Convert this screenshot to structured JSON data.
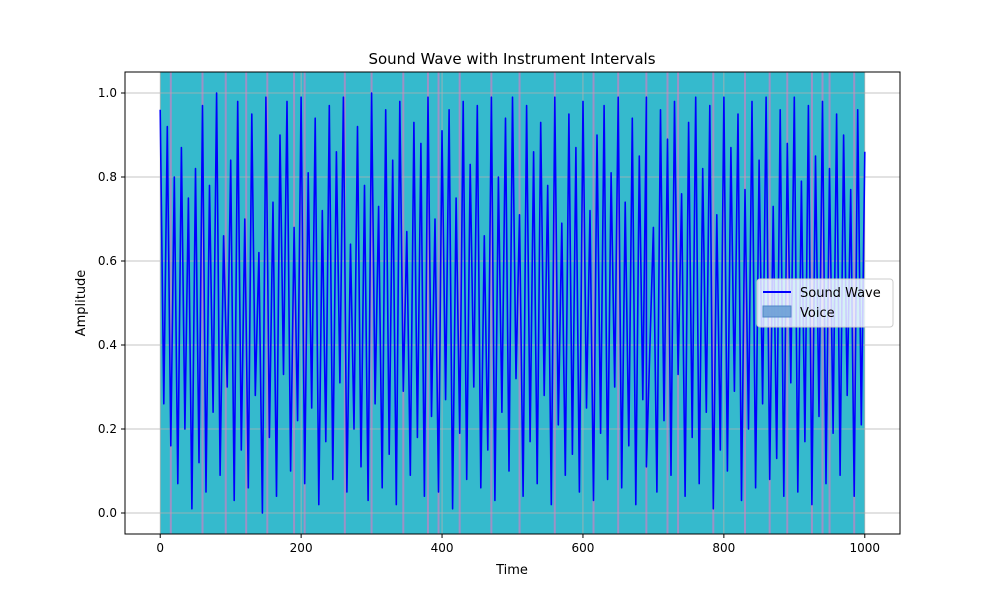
{
  "chart_data": {
    "type": "line",
    "title": "Sound Wave with Instrument Intervals",
    "xlabel": "Time",
    "ylabel": "Amplitude",
    "xlim": [
      -50,
      1050
    ],
    "ylim": [
      -0.05,
      1.05
    ],
    "x_ticks": [
      0,
      200,
      400,
      600,
      800,
      1000
    ],
    "y_ticks": [
      0.0,
      0.2,
      0.4,
      0.6,
      0.8,
      1.0
    ],
    "x_tick_labels": [
      "0",
      "200",
      "400",
      "600",
      "800",
      "1000"
    ],
    "y_tick_labels": [
      "0.0",
      "0.2",
      "0.4",
      "0.6",
      "0.8",
      "1.0"
    ],
    "grid": true,
    "legend_position": "center-right",
    "series": [
      {
        "name": "Sound Wave",
        "color": "#0000ff",
        "x_range": [
          0,
          1000
        ],
        "points": [
          [
            0,
            0.96
          ],
          [
            5,
            0.26
          ],
          [
            10,
            0.92
          ],
          [
            15,
            0.16
          ],
          [
            20,
            0.8
          ],
          [
            25,
            0.07
          ],
          [
            30,
            0.87
          ],
          [
            35,
            0.2
          ],
          [
            40,
            0.75
          ],
          [
            45,
            0.01
          ],
          [
            50,
            0.82
          ],
          [
            55,
            0.12
          ],
          [
            60,
            0.97
          ],
          [
            65,
            0.05
          ],
          [
            70,
            0.78
          ],
          [
            75,
            0.24
          ],
          [
            80,
            1.0
          ],
          [
            85,
            0.09
          ],
          [
            90,
            0.66
          ],
          [
            95,
            0.3
          ],
          [
            100,
            0.84
          ],
          [
            105,
            0.03
          ],
          [
            110,
            0.98
          ],
          [
            115,
            0.15
          ],
          [
            120,
            0.7
          ],
          [
            125,
            0.06
          ],
          [
            130,
            0.95
          ],
          [
            135,
            0.28
          ],
          [
            140,
            0.62
          ],
          [
            145,
            0.0
          ],
          [
            150,
            0.99
          ],
          [
            155,
            0.18
          ],
          [
            160,
            0.74
          ],
          [
            165,
            0.04
          ],
          [
            170,
            0.9
          ],
          [
            175,
            0.33
          ],
          [
            180,
            0.98
          ],
          [
            185,
            0.1
          ],
          [
            190,
            0.68
          ],
          [
            195,
            0.22
          ],
          [
            200,
            0.99
          ],
          [
            205,
            0.07
          ],
          [
            210,
            0.81
          ],
          [
            215,
            0.25
          ],
          [
            220,
            0.94
          ],
          [
            225,
            0.02
          ],
          [
            230,
            0.72
          ],
          [
            235,
            0.17
          ],
          [
            240,
            0.97
          ],
          [
            245,
            0.08
          ],
          [
            250,
            0.86
          ],
          [
            255,
            0.31
          ],
          [
            260,
            0.99
          ],
          [
            265,
            0.05
          ],
          [
            270,
            0.64
          ],
          [
            275,
            0.2
          ],
          [
            280,
            0.92
          ],
          [
            285,
            0.11
          ],
          [
            290,
            0.78
          ],
          [
            295,
            0.03
          ],
          [
            300,
            1.0
          ],
          [
            305,
            0.26
          ],
          [
            310,
            0.73
          ],
          [
            315,
            0.06
          ],
          [
            320,
            0.96
          ],
          [
            325,
            0.14
          ],
          [
            330,
            0.84
          ],
          [
            335,
            0.02
          ],
          [
            340,
            0.98
          ],
          [
            345,
            0.29
          ],
          [
            350,
            0.67
          ],
          [
            355,
            0.09
          ],
          [
            360,
            0.93
          ],
          [
            365,
            0.18
          ],
          [
            370,
            0.88
          ],
          [
            375,
            0.04
          ],
          [
            380,
            0.99
          ],
          [
            385,
            0.23
          ],
          [
            390,
            0.7
          ],
          [
            395,
            0.05
          ],
          [
            400,
            0.91
          ],
          [
            405,
            0.27
          ],
          [
            410,
            0.96
          ],
          [
            415,
            0.01
          ],
          [
            420,
            0.75
          ],
          [
            425,
            0.19
          ],
          [
            430,
            0.98
          ],
          [
            435,
            0.08
          ],
          [
            440,
            0.83
          ],
          [
            445,
            0.3
          ],
          [
            450,
            0.97
          ],
          [
            455,
            0.06
          ],
          [
            460,
            0.66
          ],
          [
            465,
            0.15
          ],
          [
            470,
            0.99
          ],
          [
            475,
            0.03
          ],
          [
            480,
            0.8
          ],
          [
            485,
            0.24
          ],
          [
            490,
            0.94
          ],
          [
            495,
            0.1
          ],
          [
            500,
            0.99
          ],
          [
            505,
            0.32
          ],
          [
            510,
            0.71
          ],
          [
            515,
            0.04
          ],
          [
            520,
            0.97
          ],
          [
            525,
            0.17
          ],
          [
            530,
            0.86
          ],
          [
            535,
            0.07
          ],
          [
            540,
            0.93
          ],
          [
            545,
            0.28
          ],
          [
            550,
            0.78
          ],
          [
            555,
            0.02
          ],
          [
            560,
            0.99
          ],
          [
            565,
            0.21
          ],
          [
            570,
            0.69
          ],
          [
            575,
            0.09
          ],
          [
            580,
            0.95
          ],
          [
            585,
            0.14
          ],
          [
            590,
            0.87
          ],
          [
            595,
            0.05
          ],
          [
            600,
            0.98
          ],
          [
            605,
            0.25
          ],
          [
            610,
            0.72
          ],
          [
            615,
            0.03
          ],
          [
            620,
            0.9
          ],
          [
            625,
            0.19
          ],
          [
            630,
            0.97
          ],
          [
            635,
            0.08
          ],
          [
            640,
            0.81
          ],
          [
            645,
            0.3
          ],
          [
            650,
            0.99
          ],
          [
            655,
            0.06
          ],
          [
            660,
            0.74
          ],
          [
            665,
            0.16
          ],
          [
            670,
            0.94
          ],
          [
            675,
            0.02
          ],
          [
            680,
            0.85
          ],
          [
            685,
            0.27
          ],
          [
            690,
            0.99
          ],
          [
            690,
            0.11
          ],
          [
            700,
            0.68
          ],
          [
            705,
            0.05
          ],
          [
            710,
            0.96
          ],
          [
            715,
            0.22
          ],
          [
            720,
            0.89
          ],
          [
            725,
            0.09
          ],
          [
            730,
            0.98
          ],
          [
            735,
            0.33
          ],
          [
            740,
            0.76
          ],
          [
            745,
            0.04
          ],
          [
            750,
            0.93
          ],
          [
            755,
            0.18
          ],
          [
            760,
            0.99
          ],
          [
            765,
            0.07
          ],
          [
            770,
            0.82
          ],
          [
            775,
            0.24
          ],
          [
            780,
            0.97
          ],
          [
            785,
            0.01
          ],
          [
            790,
            0.71
          ],
          [
            795,
            0.15
          ],
          [
            800,
            0.99
          ],
          [
            805,
            0.1
          ],
          [
            810,
            0.87
          ],
          [
            815,
            0.29
          ],
          [
            820,
            0.95
          ],
          [
            825,
            0.03
          ],
          [
            830,
            0.77
          ],
          [
            835,
            0.2
          ],
          [
            840,
            0.98
          ],
          [
            845,
            0.06
          ],
          [
            850,
            0.84
          ],
          [
            855,
            0.26
          ],
          [
            860,
            0.99
          ],
          [
            865,
            0.08
          ],
          [
            870,
            0.73
          ],
          [
            875,
            0.13
          ],
          [
            880,
            0.96
          ],
          [
            885,
            0.04
          ],
          [
            890,
            0.88
          ],
          [
            895,
            0.31
          ],
          [
            900,
            0.99
          ],
          [
            905,
            0.05
          ],
          [
            910,
            0.79
          ],
          [
            915,
            0.17
          ],
          [
            920,
            0.97
          ],
          [
            925,
            0.02
          ],
          [
            930,
            0.85
          ],
          [
            935,
            0.23
          ],
          [
            940,
            0.98
          ],
          [
            945,
            0.07
          ],
          [
            950,
            0.82
          ],
          [
            955,
            0.19
          ],
          [
            960,
            0.95
          ],
          [
            965,
            0.09
          ],
          [
            970,
            0.9
          ],
          [
            975,
            0.28
          ],
          [
            980,
            0.77
          ],
          [
            985,
            0.04
          ],
          [
            990,
            0.96
          ],
          [
            995,
            0.21
          ],
          [
            1000,
            0.86
          ]
        ]
      }
    ],
    "intervals": {
      "name": "Voice",
      "color": "#1fb2c8",
      "legend_color": "#6b9ed6",
      "x_range": [
        0,
        1000
      ],
      "accent_color": "#e377c2",
      "accent_lines": [
        15,
        60,
        93,
        122,
        152,
        190,
        205,
        262,
        300,
        345,
        380,
        395,
        425,
        470,
        510,
        560,
        615,
        650,
        690,
        720,
        735,
        785,
        830,
        865,
        890,
        925,
        940,
        950,
        985
      ]
    }
  },
  "legend": {
    "series_label": "Sound Wave",
    "interval_label": "Voice"
  }
}
